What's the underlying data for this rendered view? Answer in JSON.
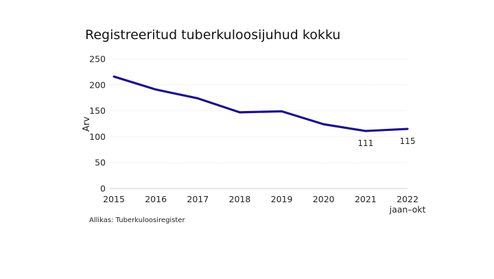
{
  "chart_data": {
    "type": "line",
    "title": "Registreeritud tuberkuloosijuhud kokku",
    "ylabel": "Arv",
    "xlabel": "",
    "categories": [
      "2015",
      "2016",
      "2017",
      "2018",
      "2019",
      "2020",
      "2021",
      "2022"
    ],
    "category_sublabels": [
      "",
      "",
      "",
      "",
      "",
      "",
      "",
      "jaan–okt"
    ],
    "series": [
      {
        "values": [
          216,
          191,
          174,
          147,
          149,
          124,
          111,
          115
        ],
        "color": "#1a0f8a"
      }
    ],
    "data_labels": [
      {
        "index": 6,
        "text": "111"
      },
      {
        "index": 7,
        "text": "115"
      }
    ],
    "ylim": [
      0,
      250
    ],
    "yticks": [
      "0",
      "50",
      "100",
      "150",
      "200",
      "250"
    ],
    "grid": true,
    "source": "Allikas: Tuberkuloosiregister"
  }
}
